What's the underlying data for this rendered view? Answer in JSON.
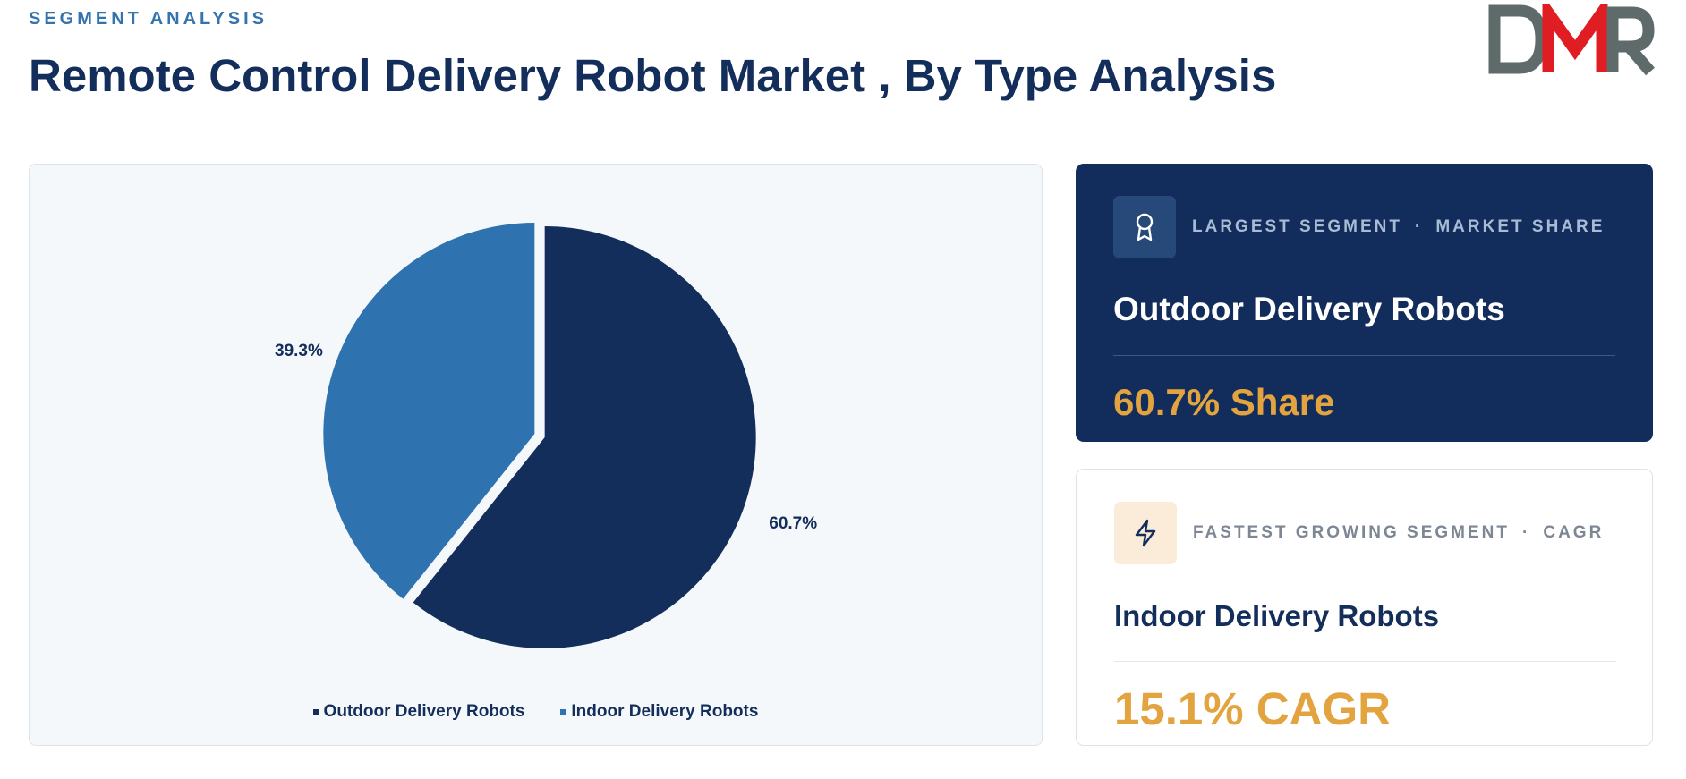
{
  "header": {
    "eyebrow": "SEGMENT ANALYSIS",
    "title": "Remote Control Delivery Robot Market , By Type Analysis"
  },
  "logo": {
    "text": "DMR",
    "colors": {
      "dark": "#5f6b6b",
      "red": "#e11d24"
    }
  },
  "chart_data": {
    "type": "pie",
    "categories": [
      "Outdoor Delivery Robots",
      "Indoor Delivery Robots"
    ],
    "values": [
      60.7,
      39.3
    ],
    "labels": [
      "60.7%",
      "39.3%"
    ],
    "colors": [
      "#132e5a",
      "#2e72b0"
    ],
    "legend": "bottom"
  },
  "cards": {
    "largest": {
      "label_left": "LARGEST SEGMENT",
      "label_sep": "·",
      "label_right": "MARKET SHARE",
      "icon": "award-icon",
      "name": "Outdoor Delivery Robots",
      "value": "60.7% Share"
    },
    "fastest": {
      "label_left": "FASTEST GROWING SEGMENT",
      "label_sep": "·",
      "label_right": "CAGR",
      "icon": "lightning-icon",
      "name": "Indoor Delivery Robots",
      "value": "15.1% CAGR"
    }
  }
}
